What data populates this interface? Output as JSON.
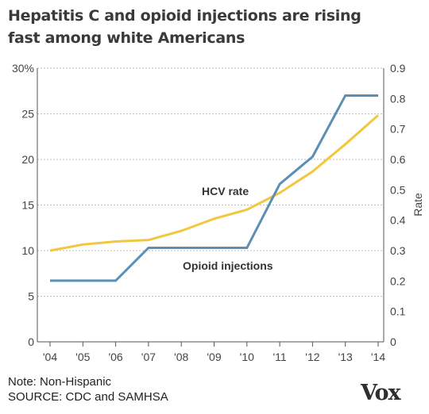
{
  "title_line1": "Hepatitis C and opioid injections are rising",
  "title_line2": "fast among white Americans",
  "note": "Note: Non-Hispanic",
  "source": "SOURCE: CDC and SAMHSA",
  "logo": "Vox",
  "chart_data": {
    "type": "line",
    "x_ticks": [
      "'04",
      "'05",
      "'06",
      "'07",
      "'08",
      "'09",
      "'10",
      "'11",
      "'12",
      "'13",
      "'14"
    ],
    "y_left_ticks": [
      "30%",
      "25",
      "20",
      "15",
      "10",
      "5",
      "0"
    ],
    "y_left_lim": [
      0,
      30
    ],
    "y_right_ticks": [
      "0.9",
      "0.8",
      "0.7",
      "0.6",
      "0.5",
      "0.4",
      "0.3",
      "0.2",
      "0.1",
      "0"
    ],
    "y_right_lim": [
      0,
      0.9
    ],
    "y_right_label": "Rate",
    "grid": "horizontal",
    "series": [
      {
        "name": "HCV rate",
        "axis": "right",
        "color": "#f2c73d",
        "x": [
          2004,
          2005,
          2006,
          2007,
          2008,
          2009,
          2010,
          2011,
          2012,
          2013,
          2014
        ],
        "values": [
          0.3,
          0.32,
          0.33,
          0.335,
          0.365,
          0.405,
          0.435,
          0.49,
          0.56,
          0.65,
          0.745
        ]
      },
      {
        "name": "Opioid injections",
        "axis": "left",
        "color": "#5b8fb3",
        "x": [
          2004,
          2005,
          2006,
          2007,
          2008,
          2009,
          2010,
          2011,
          2012,
          2013,
          2014
        ],
        "values": [
          6.7,
          6.7,
          6.7,
          10.3,
          10.3,
          10.3,
          10.3,
          17.3,
          20.3,
          27,
          27
        ]
      }
    ]
  }
}
